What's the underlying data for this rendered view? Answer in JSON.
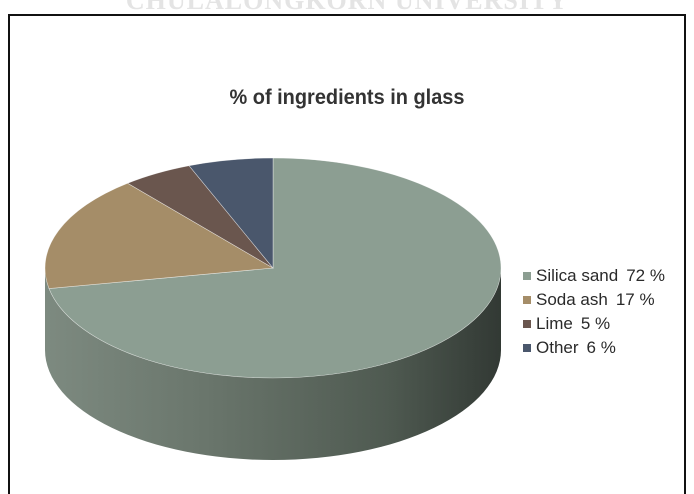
{
  "watermark_text": "CHULALONGKORN UNIVERSITY",
  "chart_data": {
    "type": "pie",
    "title": "% of ingredients in glass",
    "series": [
      {
        "label": "Silica sand",
        "value": 72,
        "value_label": "72 %",
        "color": "#8c9e92"
      },
      {
        "label": "Soda ash",
        "value": 17,
        "value_label": "17 %",
        "color": "#a58d68"
      },
      {
        "label": "Lime",
        "value": 5,
        "value_label": "5 %",
        "color": "#6a564e"
      },
      {
        "label": "Other",
        "value": 6,
        "value_label": "6 %",
        "color": "#4a576c"
      }
    ],
    "style": "3d",
    "legend_position": "right"
  }
}
